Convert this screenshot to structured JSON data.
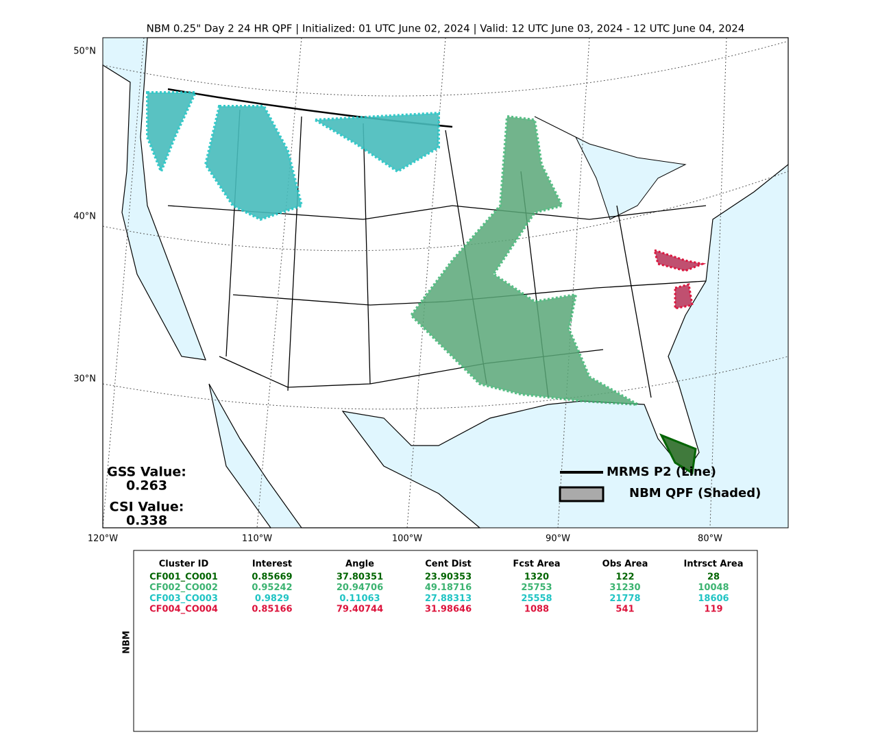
{
  "title": "NBM 0.25\" Day 2 24 HR QPF | Initialized: 01 UTC June 02, 2024 | Valid: 12 UTC June 03, 2024 - 12 UTC June 04, 2024",
  "map": {
    "lat_labels": [
      "50°N",
      "40°N",
      "30°N"
    ],
    "lon_labels": [
      "120°W",
      "110°W",
      "100°W",
      "90°W",
      "80°W"
    ],
    "stats": [
      {
        "label": "GSS Value:",
        "value": "0.263"
      },
      {
        "label": "CSI Value:",
        "value": "0.338"
      }
    ],
    "legend": [
      "MRMS P2 (Line)",
      "NBM QPF (Shaded)"
    ]
  },
  "table": {
    "side_label": "NBM",
    "headers": [
      "Cluster ID",
      "Interest",
      "Angle",
      "Cent Dist",
      "Fcst Area",
      "Obs Area",
      "Intrsct Area"
    ],
    "rows": [
      [
        "CF001_CO001",
        "0.85669",
        "37.80351",
        "23.90353",
        "1320",
        "122",
        "28"
      ],
      [
        "CF002_CO002",
        "0.95242",
        "20.94706",
        "49.18716",
        "25753",
        "31230",
        "10048"
      ],
      [
        "CF003_CO003",
        "0.9829",
        "0.11063",
        "27.88313",
        "25558",
        "21778",
        "18606"
      ],
      [
        "CF004_CO004",
        "0.85166",
        "79.40744",
        "31.98646",
        "1088",
        "541",
        "119"
      ]
    ]
  }
}
